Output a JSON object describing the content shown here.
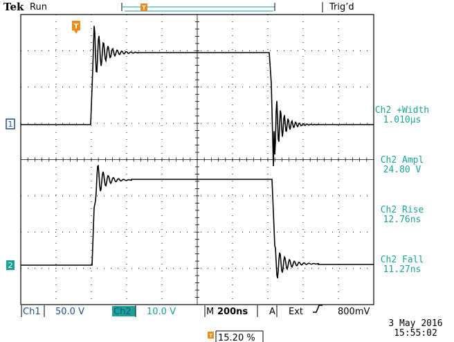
{
  "header": {
    "brand": "Tek",
    "run_state": "Run",
    "trigger_status": "Trig’d"
  },
  "channels": [
    {
      "marker": "1",
      "color": "#1f4f8c"
    },
    {
      "marker": "2",
      "color": "#1aa395"
    }
  ],
  "measurements": [
    {
      "label": "Ch2 +Width",
      "value": "1.010µs"
    },
    {
      "label": "Ch2 Ampl",
      "value": "24.80 V"
    },
    {
      "label": "Ch2 Rise",
      "value": "12.76ns"
    },
    {
      "label": "Ch2 Fall",
      "value": "11.27ns"
    }
  ],
  "status_bar": {
    "ch1_label": "Ch1",
    "ch1_scale": "50.0 V",
    "ch2_label": "Ch2",
    "ch2_scale": "10.0 V",
    "time_prefix": "M",
    "time_scale": "200ns",
    "trigger_prefix": "A",
    "trigger_source": "Ext",
    "trigger_level": "800mV"
  },
  "trigger_position": "15.20 %",
  "date": "3 May 2016",
  "time": "15:55:02",
  "colors": {
    "ch1": "#1f4f8c",
    "ch2": "#1aa395",
    "trigger": "#f08a1c",
    "grid": "#000000"
  }
}
